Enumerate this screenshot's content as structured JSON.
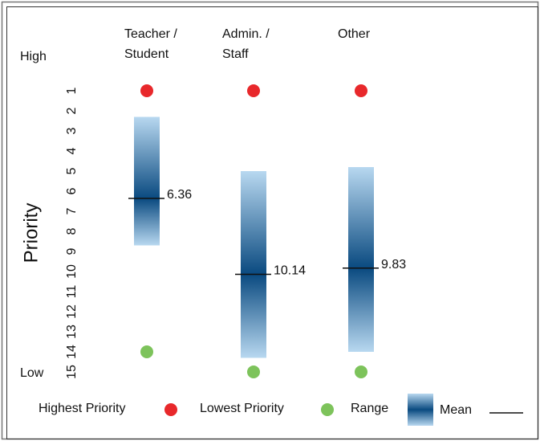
{
  "chart_data": {
    "type": "range",
    "axis_label": "Priority",
    "top_label": "High",
    "bottom_label": "Low",
    "categories": [
      [
        "Teacher /",
        "Student"
      ],
      [
        "Admin. /",
        "Staff"
      ],
      [
        "Other"
      ]
    ],
    "highest": [
      1,
      1,
      1
    ],
    "lowest": [
      14,
      15,
      15
    ],
    "range_low": [
      2.3,
      5,
      4.8
    ],
    "range_high": [
      8.7,
      14.3,
      14
    ],
    "mean": [
      6.36,
      10.14,
      9.83
    ],
    "ylim": [
      1,
      15
    ],
    "yticks": [
      1,
      2,
      3,
      4,
      5,
      6,
      7,
      8,
      9,
      10,
      11,
      12,
      13,
      14,
      15
    ],
    "inverted": true,
    "colors": {
      "highest": "#e8282b",
      "lowest": "#7dc35b",
      "range_light": "#b8d8f0",
      "range_dark": "#0a4a80",
      "mean": "#111111"
    },
    "legend": {
      "highest": "Highest Priority",
      "lowest": "Lowest Priority",
      "range": "Range",
      "mean": "Mean"
    }
  }
}
